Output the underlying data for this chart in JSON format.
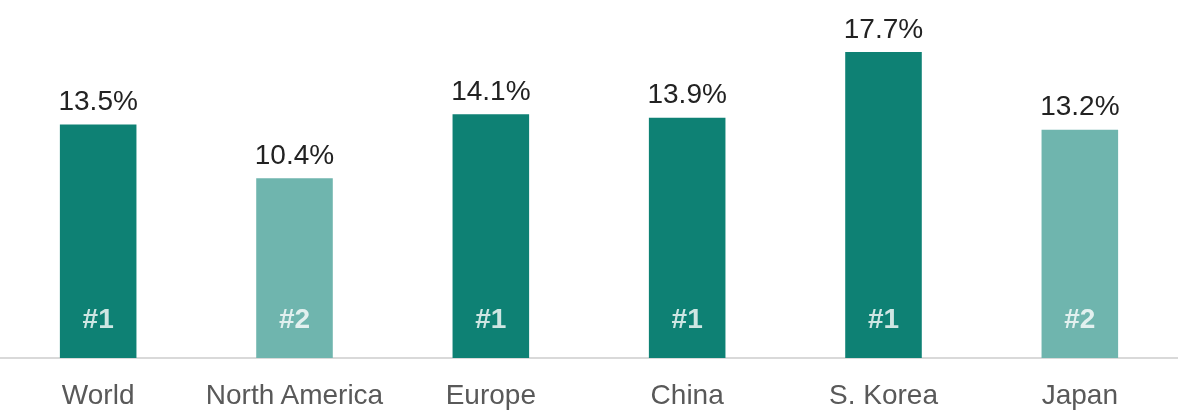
{
  "chart_data": {
    "type": "bar",
    "categories": [
      "World",
      "North America",
      "Europe",
      "China",
      "S. Korea",
      "Japan"
    ],
    "values": [
      13.5,
      10.4,
      14.1,
      13.9,
      17.7,
      13.2
    ],
    "colors": [
      "#0e8174",
      "#6fb5ae",
      "#0e8174",
      "#0e8174",
      "#0e8174",
      "#6fb5ae"
    ],
    "value_labels": [
      "13.5%",
      "10.4%",
      "14.1%",
      "13.9%",
      "17.7%",
      "13.2%"
    ],
    "annotations": [
      "#1",
      "#2",
      "#1",
      "#1",
      "#1",
      "#2"
    ]
  }
}
